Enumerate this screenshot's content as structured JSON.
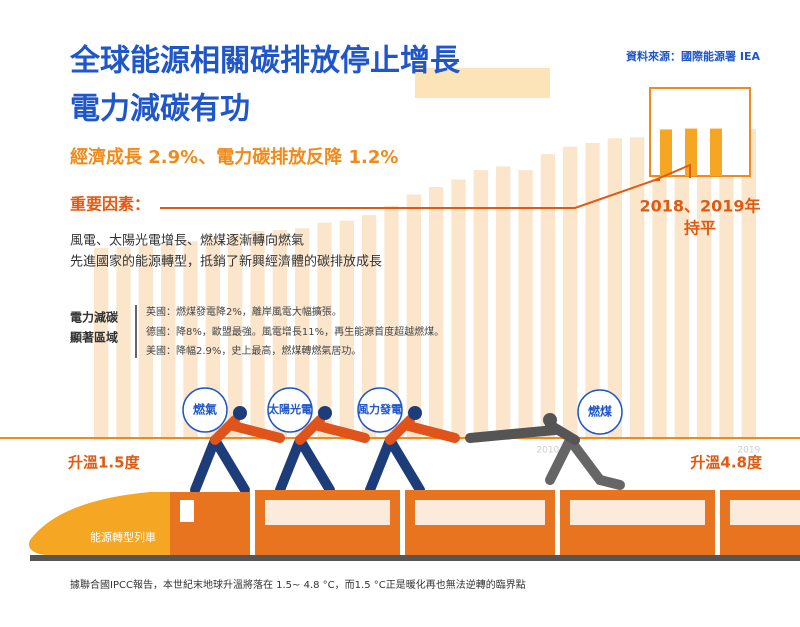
{
  "header": {
    "title_line1": "全球能源相關碳排放停止增長",
    "title_line2": "電力減碳有功",
    "source": "資料來源：國際能源署 IEA"
  },
  "subtitle": "經濟成長 2.9%、電力碳排放反降 1.2%",
  "key_factors": {
    "label": "重要因素：",
    "items": [
      "風電、太陽光電增長、燃煤逐漸轉向燃氣",
      "先進國家的能源轉型，抵銷了新興經濟體的碳排放成長"
    ]
  },
  "callout": {
    "years": "2018、2019年",
    "note": "持平"
  },
  "regions": {
    "label_line1": "電力減碳",
    "label_line2": "顯著區域",
    "items": [
      "英國：燃煤發電降2%，離岸風電大幅擴張。",
      "德國：降8%，歐盟最強。風電增長11%，再生能源首度超越燃煤。",
      "美國：降幅2.9%，史上最高，燃煤轉燃氣居功。"
    ]
  },
  "bubbles": [
    "燃氣",
    "太陽光電",
    "風力發電",
    "燃煤"
  ],
  "temperatures": {
    "low": "升溫1.5度",
    "high": "升溫4.8度"
  },
  "train_label": "能源轉型列車",
  "footnote": "據聯合國IPCC報告，本世紀末地球升溫將落在 1.5~ 4.8 °C，而1.5 °C正是暖化再也無法逆轉的臨界點",
  "chart_data": {
    "type": "bar",
    "categories": [
      null,
      null,
      null,
      null,
      null,
      null,
      null,
      null,
      null,
      null,
      null,
      null,
      null,
      null,
      null,
      null,
      null,
      null,
      null,
      null,
      "2010",
      null,
      null,
      null,
      null,
      null,
      null,
      null,
      null,
      "2019"
    ],
    "values": [
      20.5,
      20.6,
      20.8,
      21,
      21.2,
      21.6,
      22,
      22.3,
      22.4,
      22.6,
      23.2,
      23.4,
      24,
      25,
      26.2,
      27,
      27.8,
      28.8,
      29.2,
      28.8,
      30.5,
      31.3,
      31.7,
      32.2,
      32.3,
      32.2,
      32.3,
      32.6,
      33.2,
      33.2
    ],
    "color": "#fbe6cc",
    "highlight_color": "#f5a623",
    "ylim": [
      0,
      35
    ]
  }
}
